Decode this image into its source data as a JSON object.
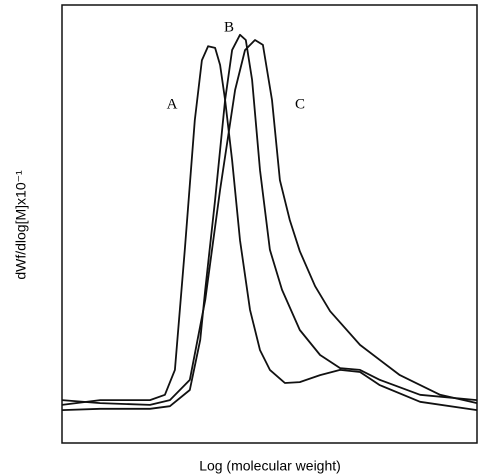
{
  "chart_data": {
    "type": "line",
    "x_label": "Log (molecular weight)",
    "y_label": "dWf/dlog[M]x10⁻¹",
    "xlim": [
      0,
      100
    ],
    "ylim": [
      0,
      100
    ],
    "series": [
      {
        "name": "A",
        "color": "#111111",
        "x": [
          0,
          9.2,
          21.2,
          24.8,
          27.2,
          29.6,
          32.0,
          33.7,
          35.2,
          36.9,
          38.1,
          39.3,
          41.0,
          42.9,
          45.3,
          47.7,
          50.1,
          53.7,
          57.3,
          62.2,
          67.0,
          71.8,
          76.6,
          86.3,
          100
        ],
        "values": [
          8.7,
          9.8,
          9.8,
          11.0,
          16.7,
          44.1,
          73.7,
          87.4,
          90.6,
          90.2,
          86.3,
          78.3,
          64.6,
          46.3,
          30.4,
          21.2,
          16.7,
          13.7,
          13.9,
          15.5,
          16.7,
          16.2,
          13.2,
          9.4,
          7.5
        ]
      },
      {
        "name": "B",
        "color": "#111111",
        "x": [
          0,
          9.2,
          21.2,
          26.0,
          30.8,
          33.3,
          34.5,
          36.9,
          39.3,
          41.0,
          42.9,
          44.3,
          45.8,
          47.7,
          50.1,
          53.0,
          57.3,
          62.2,
          67.0,
          71.8,
          76.6,
          86.3,
          100
        ],
        "values": [
          7.5,
          7.8,
          7.8,
          8.4,
          12.1,
          23.5,
          34.9,
          55.5,
          78.3,
          89.7,
          93.2,
          92.0,
          82.9,
          62.3,
          44.1,
          35.0,
          25.8,
          20.1,
          17.1,
          16.7,
          14.4,
          11.0,
          9.8
        ]
      },
      {
        "name": "C",
        "color": "#111111",
        "x": [
          0,
          9.2,
          21.2,
          26.0,
          30.8,
          34.5,
          38.1,
          41.7,
          44.1,
          46.5,
          48.4,
          50.6,
          52.5,
          54.9,
          57.3,
          61.0,
          64.6,
          71.8,
          81.4,
          91.1,
          100
        ],
        "values": [
          9.8,
          9.1,
          8.7,
          9.8,
          14.4,
          32.6,
          57.8,
          80.6,
          89.7,
          92.0,
          90.9,
          78.3,
          60.0,
          50.9,
          43.8,
          35.8,
          30.1,
          22.4,
          15.5,
          11.0,
          9.1
        ]
      }
    ]
  }
}
